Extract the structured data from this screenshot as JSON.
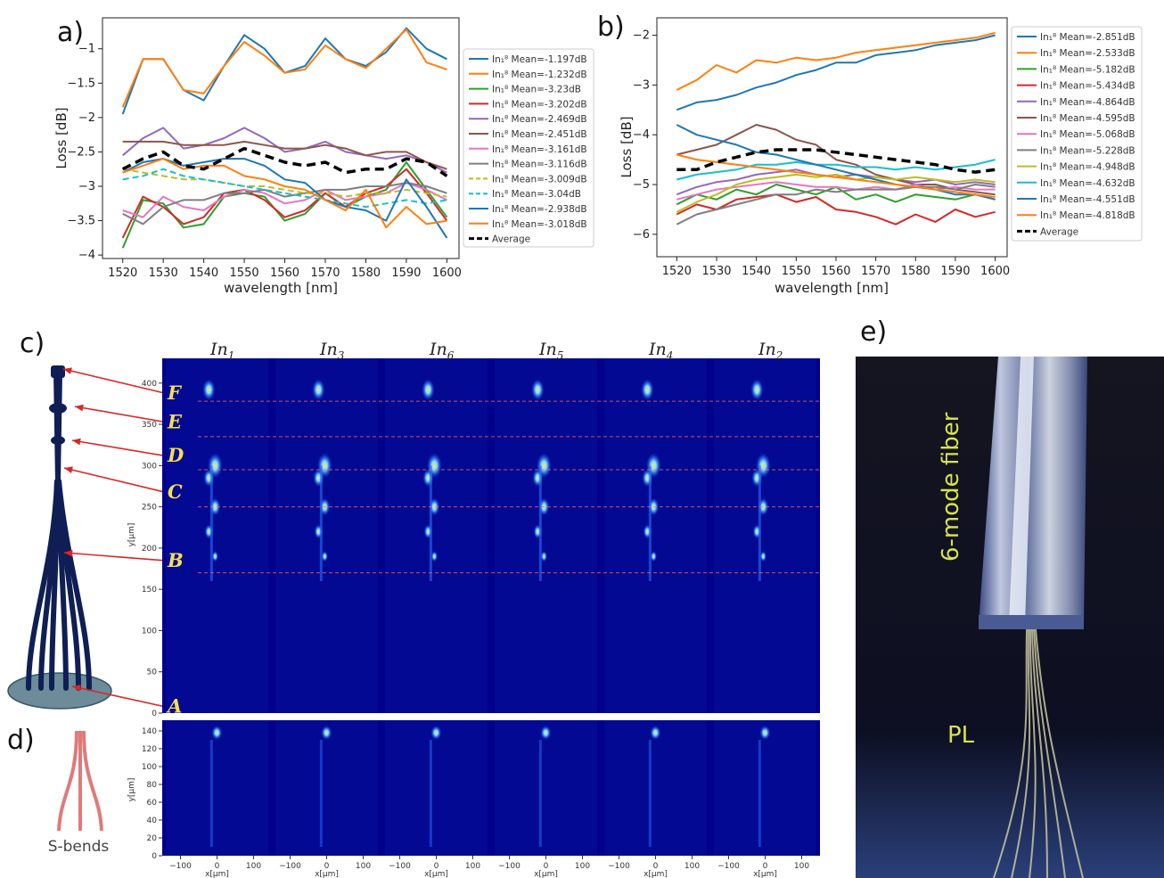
{
  "panels": {
    "a": {
      "label": "a)"
    },
    "b": {
      "label": "b)"
    },
    "c": {
      "label": "c)"
    },
    "d": {
      "label": "d)"
    },
    "e": {
      "label": "e)"
    }
  },
  "chart_data": [
    {
      "id": "a",
      "type": "line",
      "xlabel": "wavelength [nm]",
      "ylabel": "Loss [dB]",
      "xlim": [
        1515,
        1603
      ],
      "ylim": [
        -4.05,
        -0.55
      ],
      "xticks": [
        1520,
        1530,
        1540,
        1550,
        1560,
        1570,
        1580,
        1590,
        1600
      ],
      "yticks": [
        -4.0,
        -3.5,
        -3.0,
        -2.5,
        -2.0,
        -1.5,
        -1.0
      ],
      "grid": false,
      "legend_position": "right-outside",
      "x": [
        1520,
        1525,
        1530,
        1535,
        1540,
        1545,
        1550,
        1555,
        1560,
        1565,
        1570,
        1575,
        1580,
        1585,
        1590,
        1595,
        1600
      ],
      "series": [
        {
          "name": "In₁⁸ Mean=-1.197dB",
          "color": "#1f77b4",
          "dash": "solid",
          "values": [
            -1.95,
            -1.15,
            -1.15,
            -1.6,
            -1.75,
            -1.25,
            -0.8,
            -1.0,
            -1.35,
            -1.25,
            -0.85,
            -1.15,
            -1.25,
            -1.05,
            -0.7,
            -1.0,
            -1.15
          ]
        },
        {
          "name": "In₁⁸ Mean=-1.232dB",
          "color": "#ff7f0e",
          "dash": "solid",
          "values": [
            -1.85,
            -1.15,
            -1.15,
            -1.6,
            -1.65,
            -1.25,
            -0.9,
            -1.1,
            -1.35,
            -1.3,
            -0.95,
            -1.15,
            -1.28,
            -1.0,
            -0.72,
            -1.2,
            -1.3
          ]
        },
        {
          "name": "In₁⁸ Mean=-3.23dB",
          "color": "#2ca02c",
          "dash": "solid",
          "values": [
            -3.9,
            -3.2,
            -3.25,
            -3.6,
            -3.55,
            -3.15,
            -3.1,
            -3.15,
            -3.5,
            -3.4,
            -3.1,
            -3.3,
            -3.15,
            -3.05,
            -2.65,
            -3.05,
            -3.45
          ]
        },
        {
          "name": "In₁⁸ Mean=-3.202dB",
          "color": "#d62728",
          "dash": "solid",
          "values": [
            -3.75,
            -3.15,
            -3.3,
            -3.55,
            -3.45,
            -3.1,
            -3.05,
            -3.2,
            -3.45,
            -3.35,
            -3.1,
            -3.3,
            -3.1,
            -3.0,
            -2.75,
            -3.1,
            -3.5
          ]
        },
        {
          "name": "In₁⁸ Mean=-2.469dB",
          "color": "#9467bd",
          "dash": "solid",
          "values": [
            -2.55,
            -2.3,
            -2.15,
            -2.45,
            -2.4,
            -2.3,
            -2.15,
            -2.3,
            -2.5,
            -2.45,
            -2.35,
            -2.5,
            -2.55,
            -2.6,
            -2.55,
            -2.65,
            -2.8
          ]
        },
        {
          "name": "In₁⁸ Mean=-2.451dB",
          "color": "#8c564b",
          "dash": "solid",
          "values": [
            -2.35,
            -2.35,
            -2.35,
            -2.4,
            -2.4,
            -2.4,
            -2.35,
            -2.4,
            -2.45,
            -2.45,
            -2.4,
            -2.45,
            -2.55,
            -2.5,
            -2.5,
            -2.65,
            -2.75
          ]
        },
        {
          "name": "In₁⁸ Mean=-3.161dB",
          "color": "#e377c2",
          "dash": "solid",
          "values": [
            -3.35,
            -3.45,
            -3.15,
            -3.3,
            -3.35,
            -3.15,
            -3.05,
            -3.1,
            -3.25,
            -3.2,
            -3.05,
            -3.2,
            -3.15,
            -3.1,
            -2.95,
            -3.05,
            -3.2
          ]
        },
        {
          "name": "In₁⁸ Mean=-3.116dB",
          "color": "#7f7f7f",
          "dash": "solid",
          "values": [
            -3.4,
            -3.55,
            -3.3,
            -3.2,
            -3.2,
            -3.1,
            -3.1,
            -3.05,
            -3.15,
            -3.1,
            -3.05,
            -3.05,
            -3.0,
            -3.0,
            -2.95,
            -3.0,
            -3.1
          ]
        },
        {
          "name": "In₁⁸ Mean=-3.009dB",
          "color": "#bcbd22",
          "dash": "dash",
          "values": [
            -2.75,
            -2.8,
            -2.85,
            -2.9,
            -2.9,
            -2.95,
            -3.0,
            -3.0,
            -3.05,
            -3.1,
            -3.1,
            -3.15,
            -3.1,
            -3.1,
            -3.05,
            -3.1,
            -3.15
          ]
        },
        {
          "name": "In₁⁸ Mean=-3.04dB",
          "color": "#17becf",
          "dash": "dash",
          "values": [
            -2.9,
            -2.85,
            -2.75,
            -2.85,
            -2.9,
            -2.95,
            -3.0,
            -3.05,
            -3.1,
            -3.15,
            -3.2,
            -3.25,
            -3.3,
            -3.25,
            -3.2,
            -3.25,
            -3.2
          ]
        },
        {
          "name": "In₁⁸ Mean=-2.938dB",
          "color": "#1f77b4",
          "dash": "solid",
          "values": [
            -2.8,
            -2.65,
            -2.6,
            -2.7,
            -2.65,
            -2.6,
            -2.6,
            -2.7,
            -2.9,
            -2.95,
            -3.2,
            -3.3,
            -3.35,
            -3.5,
            -2.9,
            -3.3,
            -3.75
          ]
        },
        {
          "name": "In₁⁸ Mean=-3.018dB",
          "color": "#ff7f0e",
          "dash": "solid",
          "values": [
            -2.8,
            -2.7,
            -2.6,
            -2.75,
            -2.7,
            -2.7,
            -2.85,
            -2.9,
            -3.0,
            -3.05,
            -3.2,
            -3.35,
            -3.05,
            -3.6,
            -3.3,
            -3.55,
            -3.5
          ]
        },
        {
          "name": "Average",
          "color": "#000000",
          "dash": "dashbold",
          "values": [
            -2.75,
            -2.6,
            -2.5,
            -2.7,
            -2.75,
            -2.6,
            -2.45,
            -2.55,
            -2.65,
            -2.7,
            -2.65,
            -2.8,
            -2.75,
            -2.75,
            -2.6,
            -2.65,
            -2.85
          ]
        }
      ]
    },
    {
      "id": "b",
      "type": "line",
      "xlabel": "wavelength [nm]",
      "ylabel": "Loss [dB]",
      "xlim": [
        1515,
        1603
      ],
      "ylim": [
        -6.45,
        -1.65
      ],
      "xticks": [
        1520,
        1530,
        1540,
        1550,
        1560,
        1570,
        1580,
        1590,
        1600
      ],
      "yticks": [
        -6,
        -5,
        -4,
        -3,
        -2
      ],
      "grid": false,
      "legend_position": "right-outside",
      "x": [
        1520,
        1525,
        1530,
        1535,
        1540,
        1545,
        1550,
        1555,
        1560,
        1565,
        1570,
        1575,
        1580,
        1585,
        1590,
        1595,
        1600
      ],
      "series": [
        {
          "name": "In₁⁸ Mean=-2.851dB",
          "color": "#1f77b4",
          "dash": "solid",
          "values": [
            -3.5,
            -3.35,
            -3.3,
            -3.2,
            -3.05,
            -2.95,
            -2.8,
            -2.7,
            -2.55,
            -2.55,
            -2.4,
            -2.35,
            -2.3,
            -2.2,
            -2.15,
            -2.1,
            -2.0
          ]
        },
        {
          "name": "In₁⁸ Mean=-2.533dB",
          "color": "#ff7f0e",
          "dash": "solid",
          "values": [
            -3.1,
            -2.9,
            -2.6,
            -2.75,
            -2.5,
            -2.55,
            -2.45,
            -2.5,
            -2.45,
            -2.35,
            -2.3,
            -2.25,
            -2.2,
            -2.15,
            -2.1,
            -2.05,
            -1.95
          ]
        },
        {
          "name": "In₁⁸ Mean=-5.182dB",
          "color": "#2ca02c",
          "dash": "solid",
          "values": [
            -5.4,
            -5.2,
            -5.3,
            -5.1,
            -5.2,
            -5.0,
            -5.1,
            -5.2,
            -5.05,
            -5.3,
            -5.2,
            -5.35,
            -5.2,
            -5.25,
            -5.3,
            -5.2,
            -5.3
          ]
        },
        {
          "name": "In₁⁸ Mean=-5.434dB",
          "color": "#d62728",
          "dash": "solid",
          "values": [
            -5.6,
            -5.4,
            -5.5,
            -5.3,
            -5.25,
            -5.2,
            -5.35,
            -5.25,
            -5.5,
            -5.55,
            -5.65,
            -5.8,
            -5.6,
            -5.75,
            -5.5,
            -5.65,
            -5.55
          ]
        },
        {
          "name": "In₁⁸ Mean=-4.864dB",
          "color": "#9467bd",
          "dash": "solid",
          "values": [
            -5.2,
            -5.05,
            -4.95,
            -4.9,
            -4.8,
            -4.75,
            -4.7,
            -4.8,
            -4.85,
            -4.8,
            -4.85,
            -4.9,
            -4.95,
            -4.9,
            -5.0,
            -4.95,
            -5.0
          ]
        },
        {
          "name": "In₁⁸ Mean=-4.595dB",
          "color": "#8c564b",
          "dash": "solid",
          "values": [
            -4.4,
            -4.3,
            -4.2,
            -4.0,
            -3.8,
            -3.9,
            -4.1,
            -4.2,
            -4.5,
            -4.6,
            -4.8,
            -4.9,
            -5.0,
            -5.0,
            -5.1,
            -5.15,
            -5.2
          ]
        },
        {
          "name": "In₁⁸ Mean=-5.068dB",
          "color": "#e377c2",
          "dash": "solid",
          "values": [
            -5.3,
            -5.2,
            -5.1,
            -5.05,
            -5.0,
            -4.95,
            -5.0,
            -5.05,
            -5.05,
            -5.1,
            -5.05,
            -5.1,
            -5.0,
            -5.1,
            -5.05,
            -5.1,
            -5.1
          ]
        },
        {
          "name": "In₁⁸ Mean=-5.228dB",
          "color": "#7f7f7f",
          "dash": "solid",
          "values": [
            -5.8,
            -5.6,
            -5.5,
            -5.4,
            -5.3,
            -5.2,
            -5.2,
            -5.1,
            -5.15,
            -5.1,
            -5.1,
            -5.1,
            -5.05,
            -5.05,
            -5.1,
            -5.0,
            -5.05
          ]
        },
        {
          "name": "In₁⁸ Mean=-4.948dB",
          "color": "#bcbd22",
          "dash": "solid",
          "values": [
            -5.55,
            -5.35,
            -5.2,
            -5.0,
            -4.9,
            -4.85,
            -4.8,
            -4.85,
            -4.8,
            -4.9,
            -4.85,
            -4.9,
            -4.85,
            -4.9,
            -4.95,
            -4.9,
            -4.95
          ]
        },
        {
          "name": "In₁⁸ Mean=-4.632dB",
          "color": "#17becf",
          "dash": "solid",
          "values": [
            -4.9,
            -4.8,
            -4.75,
            -4.7,
            -4.6,
            -4.6,
            -4.55,
            -4.6,
            -4.6,
            -4.65,
            -4.65,
            -4.7,
            -4.65,
            -4.7,
            -4.65,
            -4.6,
            -4.5
          ]
        },
        {
          "name": "In₁⁸ Mean=-4.551dB",
          "color": "#1f77b4",
          "dash": "solid",
          "values": [
            -3.8,
            -4.0,
            -4.1,
            -4.2,
            -4.35,
            -4.4,
            -4.5,
            -4.6,
            -4.7,
            -4.8,
            -4.9,
            -5.0,
            -5.05,
            -5.1,
            -5.2,
            -5.2,
            -5.3
          ]
        },
        {
          "name": "In₁⁸ Mean=-4.818dB",
          "color": "#ff7f0e",
          "dash": "solid",
          "values": [
            -4.4,
            -4.5,
            -4.55,
            -4.6,
            -4.65,
            -4.7,
            -4.75,
            -4.8,
            -4.85,
            -4.9,
            -4.95,
            -5.0,
            -5.05,
            -5.1,
            -5.15,
            -5.2,
            -5.25
          ]
        },
        {
          "name": "Average",
          "color": "#000000",
          "dash": "dashbold",
          "values": [
            -4.7,
            -4.7,
            -4.55,
            -4.45,
            -4.35,
            -4.3,
            -4.3,
            -4.3,
            -4.35,
            -4.4,
            -4.45,
            -4.5,
            -4.55,
            -4.6,
            -4.7,
            -4.75,
            -4.7
          ]
        }
      ]
    },
    {
      "id": "c",
      "type": "heatmap",
      "ylabel": "y[μm]",
      "yticks": [
        0,
        50,
        100,
        150,
        200,
        250,
        300,
        350,
        400
      ],
      "ylim": [
        0,
        430
      ],
      "columns": [
        "In",
        "In",
        "In",
        "In",
        "In",
        "In"
      ],
      "column_subscripts": [
        "1",
        "3",
        "6",
        "5",
        "4",
        "2"
      ],
      "sections": [
        {
          "letter": "F",
          "y": 388
        },
        {
          "letter": "E",
          "y": 353
        },
        {
          "letter": "D",
          "y": 312
        },
        {
          "letter": "C",
          "y": 268
        },
        {
          "letter": "B",
          "y": 185
        },
        {
          "letter": "A",
          "y": 8
        }
      ],
      "dashed_lines_y": [
        378,
        335,
        295,
        250,
        170
      ]
    },
    {
      "id": "d",
      "type": "heatmap",
      "xlabel": "x[μm]",
      "ylabel": "y[μm]",
      "yticks": [
        0,
        20,
        40,
        60,
        80,
        100,
        120,
        140
      ],
      "ylim": [
        0,
        152
      ],
      "xticks": [
        -100,
        0,
        100
      ],
      "xlim": [
        -150,
        150
      ]
    }
  ],
  "sbends": {
    "label": "S-bends"
  },
  "photo": {
    "fiber_label": "6-mode fiber",
    "pl_label": "PL"
  }
}
